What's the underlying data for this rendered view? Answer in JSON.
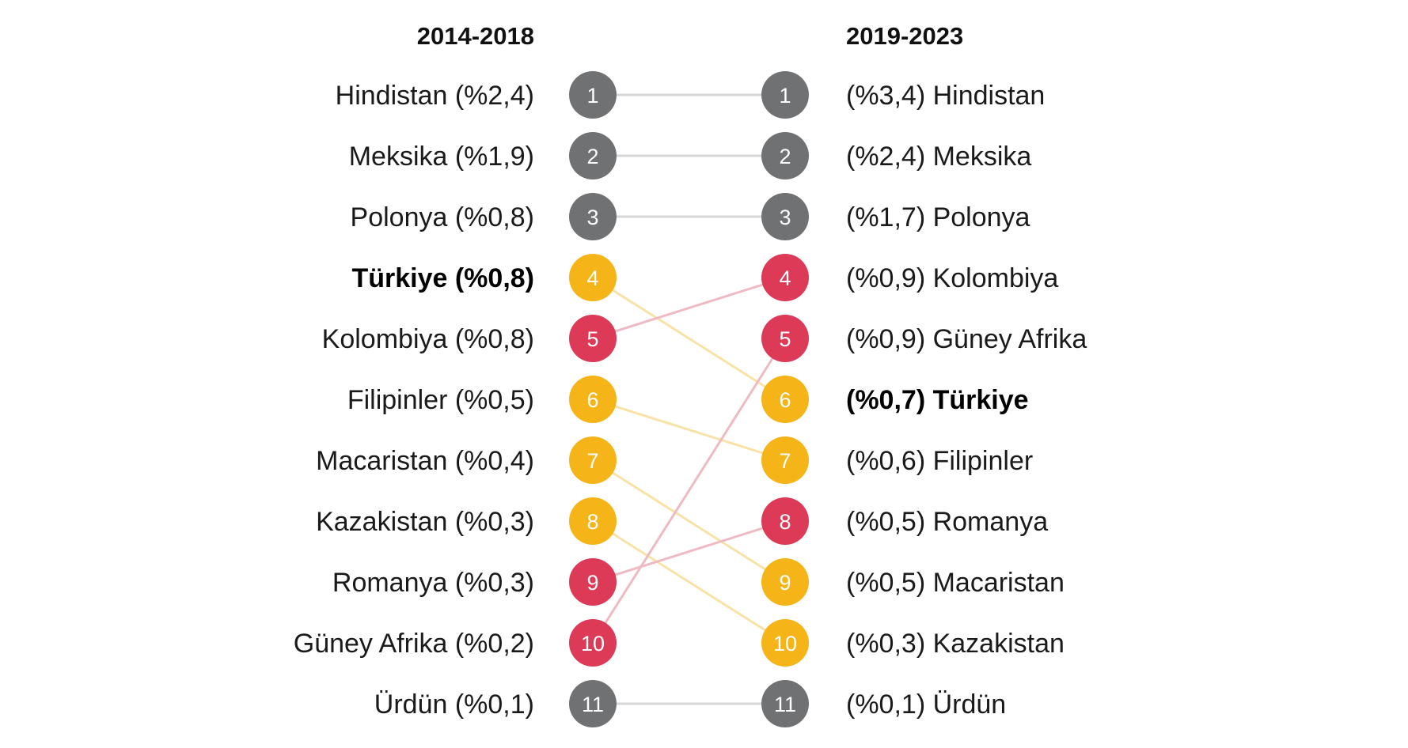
{
  "chart_data": {
    "type": "slope",
    "left": {
      "title": "2014-2018",
      "items": [
        {
          "rank": 1,
          "country": "Hindistan",
          "value": "%2,4",
          "label": "Hindistan (%2,4)",
          "group": "gray"
        },
        {
          "rank": 2,
          "country": "Meksika",
          "value": "%1,9",
          "label": "Meksika (%1,9)",
          "group": "gray"
        },
        {
          "rank": 3,
          "country": "Polonya",
          "value": "%0,8",
          "label": "Polonya (%0,8)",
          "group": "gray"
        },
        {
          "rank": 4,
          "country": "Türkiye",
          "value": "%0,8",
          "label": "Türkiye (%0,8)",
          "group": "yellow",
          "bold": true
        },
        {
          "rank": 5,
          "country": "Kolombiya",
          "value": "%0,8",
          "label": "Kolombiya (%0,8)",
          "group": "red"
        },
        {
          "rank": 6,
          "country": "Filipinler",
          "value": "%0,5",
          "label": "Filipinler (%0,5)",
          "group": "yellow"
        },
        {
          "rank": 7,
          "country": "Macaristan",
          "value": "%0,4",
          "label": "Macaristan (%0,4)",
          "group": "yellow"
        },
        {
          "rank": 8,
          "country": "Kazakistan",
          "value": "%0,3",
          "label": "Kazakistan (%0,3)",
          "group": "yellow"
        },
        {
          "rank": 9,
          "country": "Romanya",
          "value": "%0,3",
          "label": "Romanya (%0,3)",
          "group": "red"
        },
        {
          "rank": 10,
          "country": "Güney Afrika",
          "value": "%0,2",
          "label": "Güney Afrika (%0,2)",
          "group": "red"
        },
        {
          "rank": 11,
          "country": "Ürdün",
          "value": "%0,1",
          "label": "Ürdün (%0,1)",
          "group": "gray"
        }
      ]
    },
    "right": {
      "title": "2019-2023",
      "items": [
        {
          "rank": 1,
          "country": "Hindistan",
          "value": "%3,4",
          "label": "(%3,4) Hindistan",
          "group": "gray"
        },
        {
          "rank": 2,
          "country": "Meksika",
          "value": "%2,4",
          "label": "(%2,4) Meksika",
          "group": "gray"
        },
        {
          "rank": 3,
          "country": "Polonya",
          "value": "%1,7",
          "label": "(%1,7) Polonya",
          "group": "gray"
        },
        {
          "rank": 4,
          "country": "Kolombiya",
          "value": "%0,9",
          "label": "(%0,9) Kolombiya",
          "group": "red"
        },
        {
          "rank": 5,
          "country": "Güney Afrika",
          "value": "%0,9",
          "label": "(%0,9) Güney Afrika",
          "group": "red"
        },
        {
          "rank": 6,
          "country": "Türkiye",
          "value": "%0,7",
          "label": "(%0,7) Türkiye",
          "group": "yellow",
          "bold": true
        },
        {
          "rank": 7,
          "country": "Filipinler",
          "value": "%0,6",
          "label": "(%0,6) Filipinler",
          "group": "yellow"
        },
        {
          "rank": 8,
          "country": "Romanya",
          "value": "%0,5",
          "label": "(%0,5) Romanya",
          "group": "red"
        },
        {
          "rank": 9,
          "country": "Macaristan",
          "value": "%0,5",
          "label": "(%0,5) Macaristan",
          "group": "yellow"
        },
        {
          "rank": 10,
          "country": "Kazakistan",
          "value": "%0,3",
          "label": "(%0,3) Kazakistan",
          "group": "yellow"
        },
        {
          "rank": 11,
          "country": "Ürdün",
          "value": "%0,1",
          "label": "(%0,1) Ürdün",
          "group": "gray"
        }
      ]
    },
    "colors": {
      "gray": "#707173",
      "yellow": "#f5b418",
      "red": "#dc3a57",
      "line_gray": "#d6d6d6",
      "line_yellow": "#f8e2a6",
      "line_red": "#eebac4"
    }
  }
}
